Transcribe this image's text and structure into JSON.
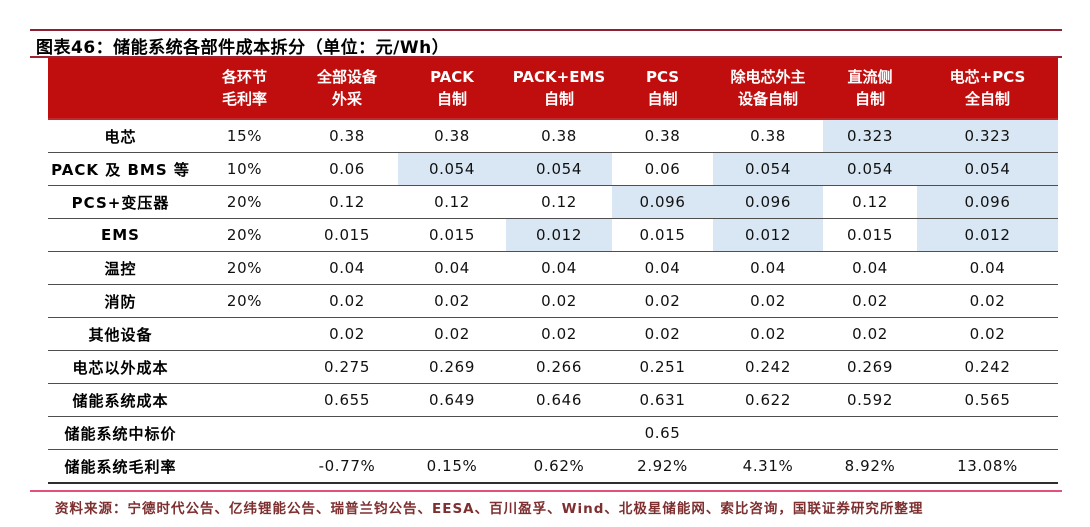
{
  "figure": {
    "title": "图表46：储能系统各部件成本拆分（单位：元/Wh）",
    "source": "资料来源：宁德时代公告、亿纬锂能公告、瑞普兰钧公告、EESA、百川盈孚、Wind、北极星储能网、索比咨询，国联证券研究所整理"
  },
  "colors": {
    "header_bg": "#c00d0d",
    "header_text": "#ffffff",
    "highlight_cell": "#d9e7f4",
    "top_rule": "#8c2133",
    "mid_rule": "#9c2433",
    "bottom_rule": "#e2517b",
    "row_divider": "#4f4f4f",
    "table_bottom": "#2e2e2e",
    "source_text": "#7e2f2f",
    "value_text": "#111111"
  },
  "table": {
    "header": [
      {
        "line1": "",
        "line2": ""
      },
      {
        "line1": "各环节",
        "line2": "毛利率"
      },
      {
        "line1": "全部设备",
        "line2": "外采"
      },
      {
        "line1": "PACK",
        "line2": "自制"
      },
      {
        "line1": "PACK+EMS",
        "line2": "自制"
      },
      {
        "line1": "PCS",
        "line2": "自制"
      },
      {
        "line1": "除电芯外主",
        "line2": "设备自制"
      },
      {
        "line1": "直流侧",
        "line2": "自制"
      },
      {
        "line1": "电芯+PCS",
        "line2": "全自制"
      }
    ],
    "rows": [
      {
        "label": "电芯",
        "cells": [
          {
            "v": "15%"
          },
          {
            "v": "0.38"
          },
          {
            "v": "0.38"
          },
          {
            "v": "0.38"
          },
          {
            "v": "0.38"
          },
          {
            "v": "0.38"
          },
          {
            "v": "0.323",
            "hl": true
          },
          {
            "v": "0.323",
            "hl": true
          }
        ]
      },
      {
        "label": "PACK 及 BMS 等",
        "cells": [
          {
            "v": "10%"
          },
          {
            "v": "0.06"
          },
          {
            "v": "0.054",
            "hl": true
          },
          {
            "v": "0.054",
            "hl": true
          },
          {
            "v": "0.06"
          },
          {
            "v": "0.054",
            "hl": true
          },
          {
            "v": "0.054",
            "hl": true
          },
          {
            "v": "0.054",
            "hl": true
          }
        ]
      },
      {
        "label": "PCS+变压器",
        "cells": [
          {
            "v": "20%"
          },
          {
            "v": "0.12"
          },
          {
            "v": "0.12"
          },
          {
            "v": "0.12"
          },
          {
            "v": "0.096",
            "hl": true
          },
          {
            "v": "0.096",
            "hl": true
          },
          {
            "v": "0.12"
          },
          {
            "v": "0.096",
            "hl": true
          }
        ]
      },
      {
        "label": "EMS",
        "cells": [
          {
            "v": "20%"
          },
          {
            "v": "0.015"
          },
          {
            "v": "0.015"
          },
          {
            "v": "0.012",
            "hl": true
          },
          {
            "v": "0.015"
          },
          {
            "v": "0.012",
            "hl": true
          },
          {
            "v": "0.015"
          },
          {
            "v": "0.012",
            "hl": true
          }
        ]
      },
      {
        "label": "温控",
        "cells": [
          {
            "v": "20%"
          },
          {
            "v": "0.04"
          },
          {
            "v": "0.04"
          },
          {
            "v": "0.04"
          },
          {
            "v": "0.04"
          },
          {
            "v": "0.04"
          },
          {
            "v": "0.04"
          },
          {
            "v": "0.04"
          }
        ]
      },
      {
        "label": "消防",
        "cells": [
          {
            "v": "20%"
          },
          {
            "v": "0.02"
          },
          {
            "v": "0.02"
          },
          {
            "v": "0.02"
          },
          {
            "v": "0.02"
          },
          {
            "v": "0.02"
          },
          {
            "v": "0.02"
          },
          {
            "v": "0.02"
          }
        ]
      },
      {
        "label": "其他设备",
        "cells": [
          {
            "v": ""
          },
          {
            "v": "0.02"
          },
          {
            "v": "0.02"
          },
          {
            "v": "0.02"
          },
          {
            "v": "0.02"
          },
          {
            "v": "0.02"
          },
          {
            "v": "0.02"
          },
          {
            "v": "0.02"
          }
        ]
      },
      {
        "label": "电芯以外成本",
        "cells": [
          {
            "v": ""
          },
          {
            "v": "0.275"
          },
          {
            "v": "0.269"
          },
          {
            "v": "0.266"
          },
          {
            "v": "0.251"
          },
          {
            "v": "0.242"
          },
          {
            "v": "0.269"
          },
          {
            "v": "0.242"
          }
        ]
      },
      {
        "label": "储能系统成本",
        "cells": [
          {
            "v": ""
          },
          {
            "v": "0.655"
          },
          {
            "v": "0.649"
          },
          {
            "v": "0.646"
          },
          {
            "v": "0.631"
          },
          {
            "v": "0.622"
          },
          {
            "v": "0.592"
          },
          {
            "v": "0.565"
          }
        ]
      },
      {
        "label": "储能系统中标价",
        "cells": [
          {
            "v": ""
          },
          {
            "v": ""
          },
          {
            "v": ""
          },
          {
            "v": ""
          },
          {
            "v": "0.65"
          },
          {
            "v": ""
          },
          {
            "v": ""
          },
          {
            "v": ""
          }
        ]
      },
      {
        "label": "储能系统毛利率",
        "cells": [
          {
            "v": ""
          },
          {
            "v": "-0.77%"
          },
          {
            "v": "0.15%"
          },
          {
            "v": "0.62%"
          },
          {
            "v": "2.92%"
          },
          {
            "v": "4.31%"
          },
          {
            "v": "8.92%"
          },
          {
            "v": "13.08%"
          }
        ]
      }
    ]
  }
}
